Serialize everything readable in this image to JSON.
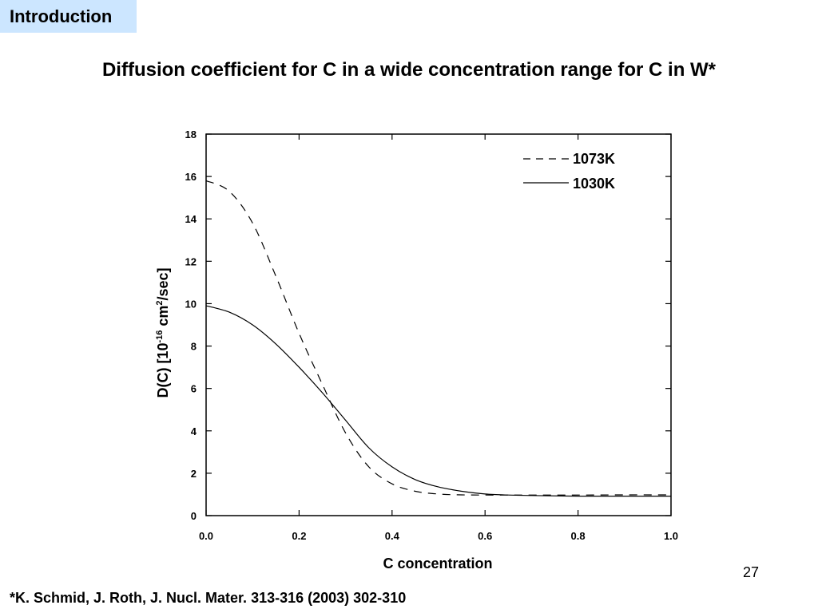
{
  "slide": {
    "section_tab": "Introduction",
    "title": "Diffusion coefficient for C in a wide concentration range for C in W*",
    "page_number": "27",
    "footnote": "*K. Schmid, J. Roth, J. Nucl. Mater. 313-316 (2003) 302-310",
    "accent_color": "#cce6ff"
  },
  "chart_data": {
    "type": "line",
    "title": "",
    "xlabel": "C concentration",
    "ylabel": {
      "prefix": "D(C) [10",
      "exp1": "-16",
      "middle": " cm",
      "exp2": "2",
      "suffix": "/sec]"
    },
    "xlim": [
      0,
      1
    ],
    "ylim": [
      0,
      18
    ],
    "x_ticks": [
      "0.0",
      "0.2",
      "0.4",
      "0.6",
      "0.8",
      "1.0"
    ],
    "y_ticks": [
      "0",
      "2",
      "4",
      "6",
      "8",
      "10",
      "12",
      "14",
      "16",
      "18"
    ],
    "grid": false,
    "legend_position": "top-right",
    "series": [
      {
        "name": "1073K",
        "style": "dashed",
        "x": [
          0,
          0.05,
          0.1,
          0.15,
          0.2,
          0.25,
          0.3,
          0.35,
          0.4,
          0.45,
          0.5,
          0.55,
          0.6,
          0.65,
          0.7,
          0.8,
          0.9,
          1.0
        ],
        "y": [
          15.8,
          15.3,
          13.8,
          11.3,
          8.6,
          6.2,
          3.9,
          2.3,
          1.5,
          1.15,
          1.02,
          0.98,
          0.97,
          0.97,
          0.97,
          0.97,
          0.98,
          0.98
        ]
      },
      {
        "name": "1030K",
        "style": "solid",
        "x": [
          0,
          0.05,
          0.1,
          0.15,
          0.2,
          0.25,
          0.3,
          0.35,
          0.4,
          0.45,
          0.5,
          0.55,
          0.6,
          0.65,
          0.7,
          0.8,
          0.9,
          1.0
        ],
        "y": [
          9.9,
          9.6,
          9.0,
          8.1,
          7.0,
          5.8,
          4.5,
          3.2,
          2.3,
          1.7,
          1.35,
          1.15,
          1.02,
          0.97,
          0.95,
          0.92,
          0.92,
          0.92
        ]
      }
    ]
  }
}
